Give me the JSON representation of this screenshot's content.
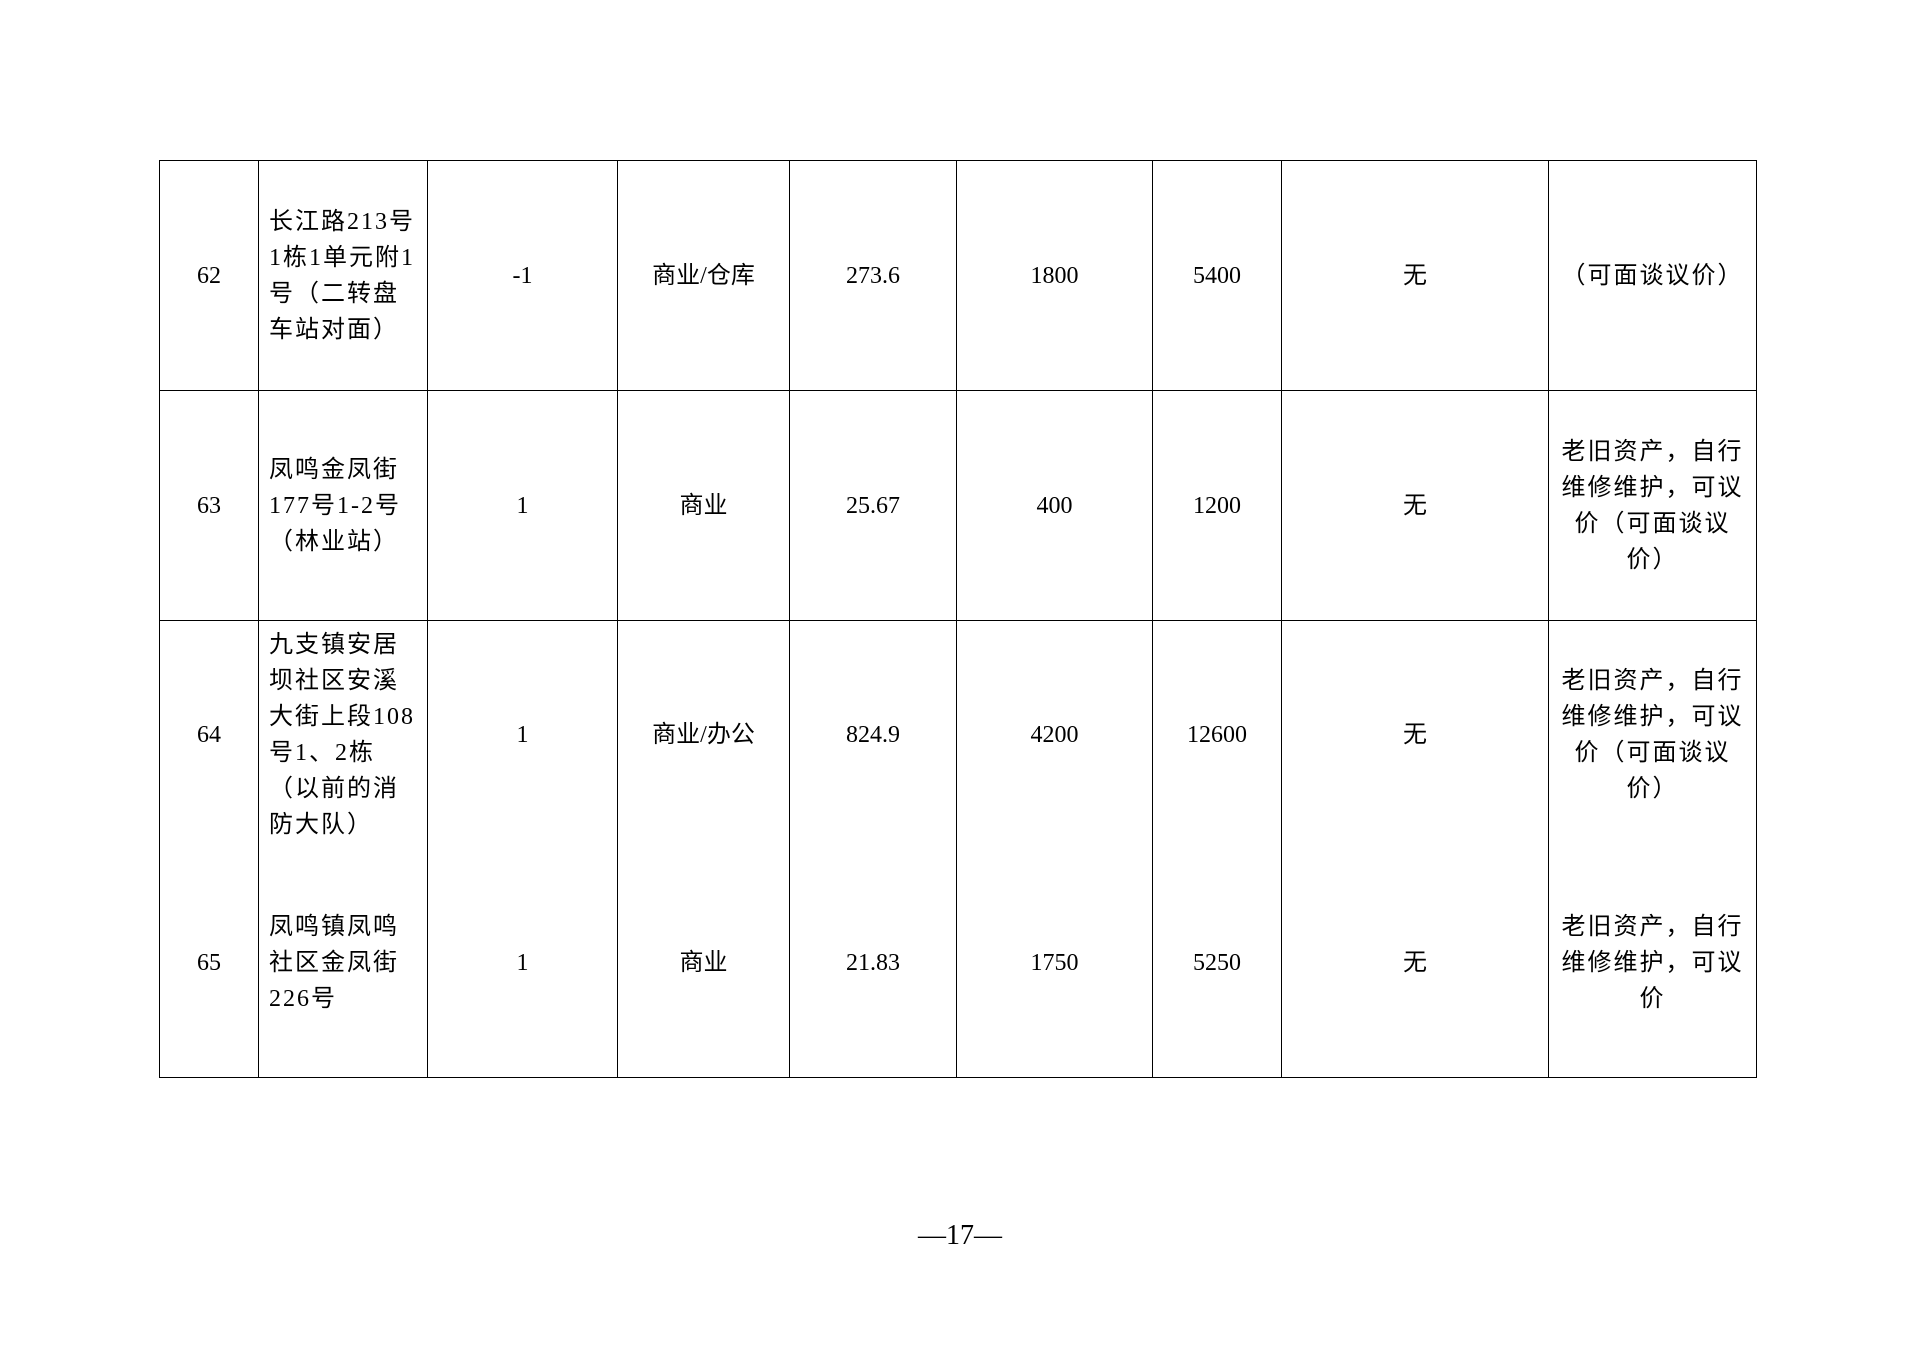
{
  "table": {
    "rows": [
      {
        "no": "62",
        "address": "长江路213号1栋1单元附1号（二转盘车站对面）",
        "floor": "-1",
        "use": "商业/仓库",
        "area": "273.6",
        "rent": "1800",
        "deposit": "5400",
        "encumbrance": "无",
        "note": "（可面谈议价）"
      },
      {
        "no": "63",
        "address": "凤鸣金凤街177号1-2号（林业站）",
        "floor": "1",
        "use": "商业",
        "area": "25.67",
        "rent": "400",
        "deposit": "1200",
        "encumbrance": "无",
        "note": "老旧资产，自行维修维护，可议价（可面谈议价）"
      },
      {
        "no": "64",
        "address": "九支镇安居坝社区安溪大街上段108号1、2栋（以前的消防大队）",
        "floor": "1",
        "use": "商业/办公",
        "area": "824.9",
        "rent": "4200",
        "deposit": "12600",
        "encumbrance": "无",
        "note": "老旧资产，自行维修维护，可议价（可面谈议价）"
      },
      {
        "no": "65",
        "address": "凤鸣镇凤鸣社区金凤街226号",
        "floor": "1",
        "use": "商业",
        "area": "21.83",
        "rent": "1750",
        "deposit": "5250",
        "encumbrance": "无",
        "note": "老旧资产，自行维修维护，可议价"
      }
    ]
  },
  "page_number": "—17—"
}
